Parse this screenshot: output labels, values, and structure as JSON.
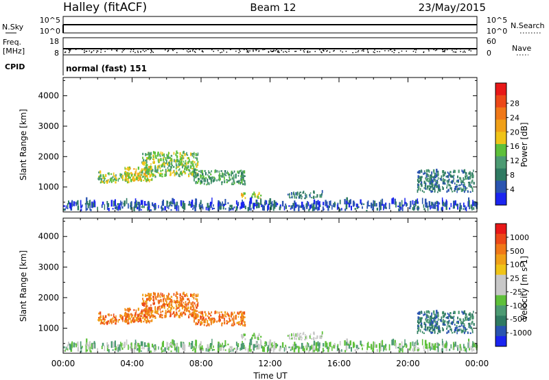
{
  "header": {
    "station": "Halley (fitACF)",
    "beam": "Beam 12",
    "date": "23/May/2015"
  },
  "sky_panel": {
    "left_label": "N.Sky",
    "right_label": "N.Search",
    "left_ticks": [
      "10^5",
      "10^0"
    ],
    "right_ticks": [
      "10^5",
      "10^0"
    ]
  },
  "freq_panel": {
    "left_label_line1": "Freq.",
    "left_label_line2": "[MHz]",
    "right_label": "Nave",
    "left_ticks": [
      "18",
      "8"
    ],
    "right_ticks": [
      "60",
      "0"
    ]
  },
  "cpid": {
    "label": "CPID",
    "value": "normal (fast) 151"
  },
  "chart_data": [
    {
      "type": "heatmap",
      "name": "power",
      "ylabel": "Slant Range [km]",
      "ylim": [
        180,
        4600
      ],
      "yticks": [
        1000,
        2000,
        3000,
        4000
      ],
      "xlim": [
        0,
        24
      ],
      "colorbar": {
        "label": "Power [dB]",
        "ticks": [
          "4",
          "8",
          "12",
          "16",
          "20",
          "24",
          "28"
        ],
        "colors": [
          "#1a24f0",
          "#2a54b0",
          "#2f7a62",
          "#4c9a72",
          "#5ec03a",
          "#f0c418",
          "#f0a018",
          "#f07818",
          "#ec4818",
          "#e81818"
        ]
      },
      "echo_regions": [
        {
          "t0": 2.0,
          "t1": 3.8,
          "r0": 1100,
          "r1": 1450,
          "level": 4
        },
        {
          "t0": 3.5,
          "t1": 5.2,
          "r0": 1150,
          "r1": 1600,
          "level": 5
        },
        {
          "t0": 4.5,
          "t1": 7.8,
          "r0": 1300,
          "r1": 2100,
          "level": 4
        },
        {
          "t0": 7.5,
          "t1": 10.5,
          "r0": 1050,
          "r1": 1500,
          "level": 3
        },
        {
          "t0": 10.3,
          "t1": 11.5,
          "r0": 600,
          "r1": 750,
          "level": 5
        },
        {
          "t0": 13.0,
          "t1": 15.0,
          "r0": 600,
          "r1": 800,
          "level": 2
        },
        {
          "t0": 20.5,
          "t1": 23.8,
          "r0": 800,
          "r1": 1500,
          "level": 2
        },
        {
          "t0": 0.0,
          "t1": 24.0,
          "r0": 200,
          "r1": 450,
          "level": 1
        }
      ]
    },
    {
      "type": "heatmap",
      "name": "velocity",
      "ylabel": "Slant Range [km]",
      "ylim": [
        180,
        4600
      ],
      "yticks": [
        1000,
        2000,
        3000,
        4000
      ],
      "xlim": [
        0,
        24
      ],
      "xlabel": "Time UT",
      "xticks": [
        "00:00",
        "04:00",
        "08:00",
        "12:00",
        "16:00",
        "20:00",
        "00:00"
      ],
      "colorbar": {
        "label": "Velocity [m s-1]",
        "ticks": [
          "1000",
          "500",
          "100",
          "25",
          "-25",
          "-100",
          "-500",
          "-1000"
        ],
        "colors": [
          "#1a24f0",
          "#2a54b0",
          "#2f7a62",
          "#4c9a72",
          "#5ec03a",
          "#c8c8c8",
          "#c8c8c8",
          "#f0c418",
          "#f0a018",
          "#f07818",
          "#ec4818",
          "#e81818"
        ]
      },
      "echo_regions": [
        {
          "t0": 2.0,
          "t1": 3.8,
          "r0": 1100,
          "r1": 1450,
          "level": 9
        },
        {
          "t0": 3.5,
          "t1": 5.2,
          "r0": 1150,
          "r1": 1600,
          "level": 9
        },
        {
          "t0": 4.5,
          "t1": 7.8,
          "r0": 1300,
          "r1": 2100,
          "level": 9
        },
        {
          "t0": 7.5,
          "t1": 10.5,
          "r0": 1050,
          "r1": 1500,
          "level": 9
        },
        {
          "t0": 10.3,
          "t1": 11.5,
          "r0": 600,
          "r1": 750,
          "level": 5
        },
        {
          "t0": 13.0,
          "t1": 15.0,
          "r0": 600,
          "r1": 800,
          "level": 5
        },
        {
          "t0": 20.5,
          "t1": 23.8,
          "r0": 800,
          "r1": 1500,
          "level": 2
        },
        {
          "t0": 0.0,
          "t1": 24.0,
          "r0": 200,
          "r1": 450,
          "level": 4
        }
      ]
    }
  ]
}
